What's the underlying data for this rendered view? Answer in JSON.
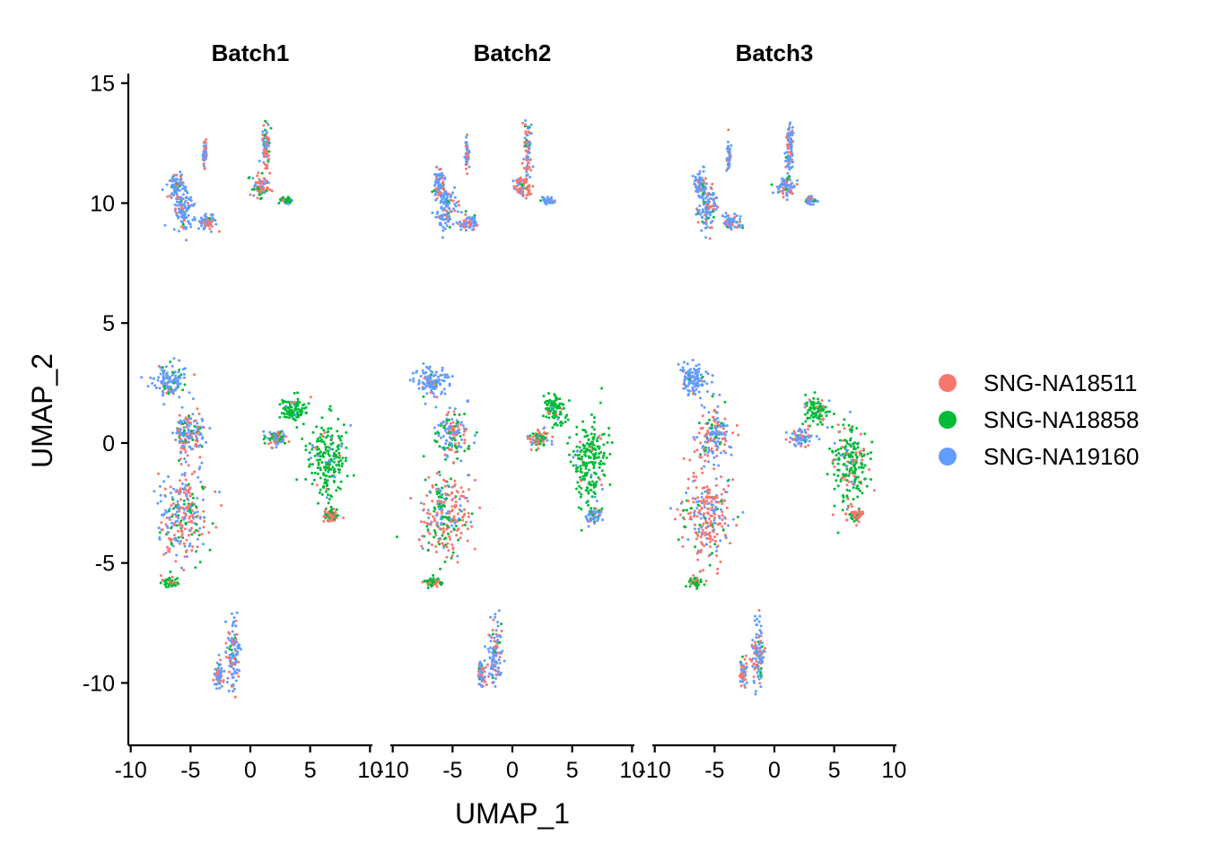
{
  "chart_data": {
    "type": "scatter",
    "xlabel": "UMAP_1",
    "ylabel": "UMAP_2",
    "xlim": [
      -10.2,
      10.2
    ],
    "ylim": [
      -12.6,
      15.4
    ],
    "x_ticks": [
      -10,
      -5,
      0,
      5,
      10
    ],
    "x_tick_labels": [
      "-10",
      "-5",
      "0",
      "5",
      "10"
    ],
    "y_ticks": [
      -10,
      -5,
      0,
      5,
      10,
      15
    ],
    "y_tick_labels": [
      "-10",
      "-5",
      "0",
      "5",
      "10",
      "15"
    ],
    "grid": false,
    "legend_position": "right",
    "facets": [
      "Batch1",
      "Batch2",
      "Batch3"
    ],
    "series": [
      {
        "name": "SNG-NA18511",
        "color": "#F8766D"
      },
      {
        "name": "SNG-NA18858",
        "color": "#00BA38"
      },
      {
        "name": "SNG-NA19160",
        "color": "#619CFF"
      }
    ],
    "clusters": [
      {
        "center": [
          -6.8,
          2.6
        ],
        "spread": [
          1.2,
          0.6
        ],
        "mix": {
          "Batch1": [
            0.05,
            0.1,
            0.85
          ],
          "Batch2": [
            0.05,
            0.05,
            0.9
          ],
          "Batch3": [
            0.1,
            0.05,
            0.85
          ]
        }
      },
      {
        "center": [
          -5.0,
          0.4
        ],
        "spread": [
          1.2,
          0.9
        ],
        "mix": {
          "Batch1": [
            0.3,
            0.2,
            0.5
          ],
          "Batch2": [
            0.3,
            0.3,
            0.4
          ],
          "Batch3": [
            0.35,
            0.15,
            0.5
          ]
        }
      },
      {
        "center": [
          -5.6,
          -3.0
        ],
        "spread": [
          1.9,
          1.7
        ],
        "mix": {
          "Batch1": [
            0.5,
            0.15,
            0.35
          ],
          "Batch2": [
            0.55,
            0.25,
            0.2
          ],
          "Batch3": [
            0.6,
            0.1,
            0.3
          ]
        }
      },
      {
        "center": [
          -6.6,
          -5.8
        ],
        "spread": [
          0.6,
          0.2
        ],
        "mix": {
          "Batch1": [
            0.2,
            0.8,
            0.0
          ],
          "Batch2": [
            0.4,
            0.6,
            0.0
          ],
          "Batch3": [
            0.3,
            0.7,
            0.0
          ]
        }
      },
      {
        "center": [
          6.4,
          -0.8
        ],
        "spread": [
          1.4,
          1.5
        ],
        "mix": {
          "Batch1": [
            0.03,
            0.92,
            0.05
          ],
          "Batch2": [
            0.05,
            0.9,
            0.05
          ],
          "Batch3": [
            0.2,
            0.75,
            0.05
          ]
        }
      },
      {
        "center": [
          3.6,
          1.4
        ],
        "spread": [
          0.9,
          0.5
        ],
        "mix": {
          "Batch1": [
            0.05,
            0.9,
            0.05
          ],
          "Batch2": [
            0.05,
            0.9,
            0.05
          ],
          "Batch3": [
            0.05,
            0.9,
            0.05
          ]
        }
      },
      {
        "center": [
          2.2,
          0.2
        ],
        "spread": [
          0.9,
          0.3
        ],
        "mix": {
          "Batch1": [
            0.3,
            0.3,
            0.4
          ],
          "Batch2": [
            0.5,
            0.3,
            0.2
          ],
          "Batch3": [
            0.4,
            0.1,
            0.5
          ]
        }
      },
      {
        "center": [
          6.8,
          -3.0
        ],
        "spread": [
          0.6,
          0.3
        ],
        "mix": {
          "Batch1": [
            0.6,
            0.4,
            0.0
          ],
          "Batch2": [
            0.1,
            0.3,
            0.6
          ],
          "Batch3": [
            0.7,
            0.2,
            0.1
          ]
        }
      },
      {
        "center": [
          -5.6,
          9.8
        ],
        "spread": [
          0.8,
          0.8
        ],
        "mix": {
          "Batch1": [
            0.15,
            0.05,
            0.8
          ],
          "Batch2": [
            0.25,
            0.05,
            0.7
          ],
          "Batch3": [
            0.3,
            0.05,
            0.65
          ]
        }
      },
      {
        "center": [
          -6.2,
          10.8
        ],
        "spread": [
          0.5,
          0.5
        ],
        "mix": {
          "Batch1": [
            0.2,
            0.05,
            0.75
          ],
          "Batch2": [
            0.2,
            0.05,
            0.75
          ],
          "Batch3": [
            0.2,
            0.05,
            0.75
          ]
        }
      },
      {
        "center": [
          -3.6,
          9.2
        ],
        "spread": [
          0.7,
          0.3
        ],
        "mix": {
          "Batch1": [
            0.4,
            0.05,
            0.55
          ],
          "Batch2": [
            0.2,
            0.05,
            0.75
          ],
          "Batch3": [
            0.2,
            0.05,
            0.75
          ]
        }
      },
      {
        "center": [
          -3.8,
          12.0
        ],
        "spread": [
          0.15,
          0.6
        ],
        "mix": {
          "Batch1": [
            0.3,
            0.0,
            0.7
          ],
          "Batch2": [
            0.3,
            0.0,
            0.7
          ],
          "Batch3": [
            0.3,
            0.0,
            0.7
          ]
        }
      },
      {
        "center": [
          0.9,
          10.7
        ],
        "spread": [
          0.7,
          0.4
        ],
        "mix": {
          "Batch1": [
            0.6,
            0.2,
            0.2
          ],
          "Batch2": [
            0.65,
            0.1,
            0.25
          ],
          "Batch3": [
            0.3,
            0.05,
            0.65
          ]
        }
      },
      {
        "center": [
          1.3,
          12.3
        ],
        "spread": [
          0.3,
          1.0
        ],
        "mix": {
          "Batch1": [
            0.6,
            0.1,
            0.3
          ],
          "Batch2": [
            0.5,
            0.1,
            0.4
          ],
          "Batch3": [
            0.2,
            0.05,
            0.75
          ]
        }
      },
      {
        "center": [
          3.0,
          10.1
        ],
        "spread": [
          0.5,
          0.15
        ],
        "mix": {
          "Batch1": [
            0.1,
            0.5,
            0.4
          ],
          "Batch2": [
            0.1,
            0.1,
            0.8
          ],
          "Batch3": [
            0.1,
            0.2,
            0.7
          ]
        }
      },
      {
        "center": [
          -1.4,
          -8.8
        ],
        "spread": [
          0.5,
          1.2
        ],
        "mix": {
          "Batch1": [
            0.35,
            0.05,
            0.6
          ],
          "Batch2": [
            0.3,
            0.05,
            0.65
          ],
          "Batch3": [
            0.3,
            0.05,
            0.65
          ]
        }
      },
      {
        "center": [
          -2.6,
          -9.6
        ],
        "spread": [
          0.3,
          0.5
        ],
        "mix": {
          "Batch1": [
            0.3,
            0.05,
            0.65
          ],
          "Batch2": [
            0.4,
            0.05,
            0.55
          ],
          "Batch3": [
            0.5,
            0.05,
            0.45
          ]
        }
      }
    ]
  }
}
